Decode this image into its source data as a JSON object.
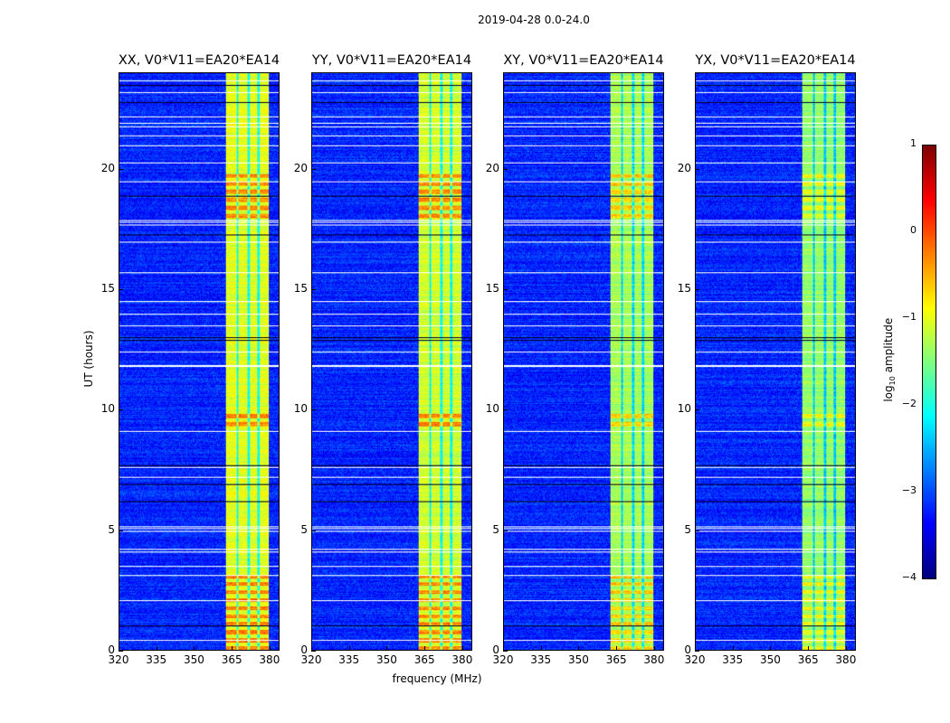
{
  "chart_data": {
    "type": "heatmap",
    "title": "2019-04-28 0.0-24.0",
    "xlabel": "frequency (MHz)",
    "ylabel": "UT (hours)",
    "xlim": [
      320,
      384
    ],
    "ylim": [
      0,
      24
    ],
    "xticks": [
      "320",
      "335",
      "350",
      "365",
      "380"
    ],
    "xtick_values": [
      320,
      335,
      350,
      365,
      380
    ],
    "yticks": [
      "0",
      "5",
      "10",
      "15",
      "20"
    ],
    "ytick_values": [
      0,
      5,
      10,
      15,
      20
    ],
    "panels": [
      {
        "title": "XX, V0*V11=EA20*EA14",
        "band_level": -1.0,
        "hot_boost": 0.9
      },
      {
        "title": "YY, V0*V11=EA20*EA14",
        "band_level": -1.1,
        "hot_boost": 1.0
      },
      {
        "title": "XY, V0*V11=EA20*EA14",
        "band_level": -1.3,
        "hot_boost": 0.8
      },
      {
        "title": "YX, V0*V11=EA20*EA14",
        "band_level": -1.4,
        "hot_boost": 0.6
      }
    ],
    "background_level": -3.2,
    "band_range_mhz": [
      362.5,
      380
    ],
    "band_gaps_mhz": [
      367.3,
      371.8,
      375.8
    ],
    "hot_hours": [
      [
        0,
        3.1
      ],
      [
        18,
        20
      ],
      [
        9.2,
        10
      ]
    ],
    "flagged_hours": [
      0.4,
      2.05,
      3.1,
      3.5,
      4.1,
      4.2,
      4.95,
      5.05,
      5.15,
      7.2,
      7.6,
      9.1,
      11.8,
      11.85,
      12.4,
      13.5,
      14.0,
      14.5,
      15.7,
      17.0,
      17.7,
      17.8,
      17.9,
      19.5,
      20.3,
      21.0,
      21.4,
      21.8,
      21.95,
      22.2,
      23.2,
      23.7
    ],
    "dark_hours": [
      1.0,
      6.2,
      6.9,
      7.7,
      12.9,
      13.0,
      17.3,
      18.9,
      22.8,
      23.5
    ],
    "colorbar": {
      "label_parts": [
        "log",
        "10",
        " amplitude"
      ],
      "ticks": [
        "1",
        "0",
        "−1",
        "−2",
        "−3",
        "−4"
      ],
      "tick_values": [
        1,
        0,
        -1,
        -2,
        -3,
        -4
      ],
      "range": [
        -4,
        1
      ],
      "colormap": "jet"
    }
  }
}
